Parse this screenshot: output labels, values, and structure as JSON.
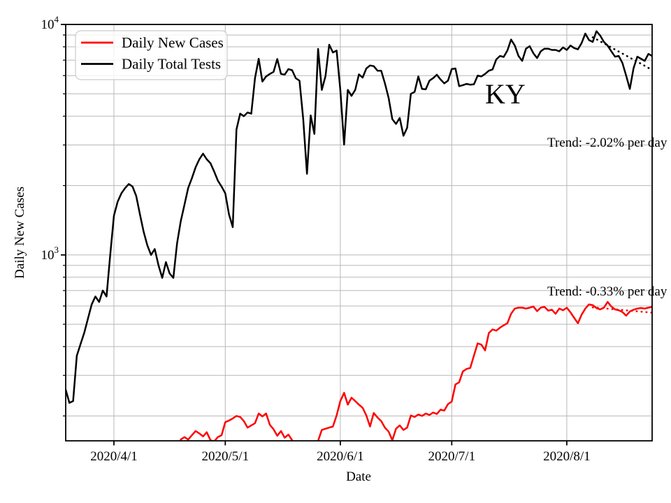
{
  "chart_data": {
    "type": "line",
    "title": "",
    "annotation": "KY",
    "xlabel": "Date",
    "ylabel": "Daily New Cases",
    "x_axis": {
      "start": "2020-03-19",
      "end": "2020-08-24",
      "ticks": [
        {
          "date": "2020-04-01",
          "label": "2020/4/1"
        },
        {
          "date": "2020-05-01",
          "label": "2020/5/1"
        },
        {
          "date": "2020-06-01",
          "label": "2020/6/1"
        },
        {
          "date": "2020-07-01",
          "label": "2020/7/1"
        },
        {
          "date": "2020-08-01",
          "label": "2020/8/1"
        }
      ]
    },
    "y_axis": {
      "scale": "log",
      "min": 156,
      "max": 10000,
      "major_ticks": [
        {
          "value": 10000,
          "base": "10",
          "exp": "4"
        },
        {
          "value": 1000,
          "base": "10",
          "exp": "3"
        }
      ]
    },
    "grid": true,
    "legend_position": "upper-left",
    "colors": {
      "cases": "#ff0000",
      "tests": "#000000",
      "grid": "#b8b8b8",
      "legend_border": "#cccccc"
    },
    "series": [
      {
        "name": "Daily New Cases",
        "color": "#ff0000",
        "start": "2020-04-19",
        "values": [
          158,
          162,
          158,
          165,
          172,
          168,
          163,
          170,
          157,
          155,
          162,
          165,
          188,
          191,
          195,
          200,
          198,
          190,
          178,
          182,
          186,
          205,
          199,
          205,
          183,
          175,
          164,
          172,
          161,
          166,
          157,
          150,
          145,
          148,
          143,
          147,
          150,
          156,
          174,
          176,
          178,
          180,
          201,
          232,
          252,
          224,
          240,
          232,
          224,
          217,
          201,
          180,
          206,
          197,
          190,
          178,
          171,
          157,
          176,
          182,
          174,
          178,
          201,
          198,
          203,
          200,
          205,
          202,
          207,
          204,
          213,
          211,
          225,
          231,
          274,
          280,
          312,
          320,
          323,
          366,
          413,
          408,
          385,
          458,
          475,
          469,
          483,
          495,
          505,
          555,
          585,
          590,
          590,
          585,
          590,
          597,
          570,
          590,
          595,
          573,
          578,
          555,
          585,
          575,
          590,
          563,
          533,
          505,
          550,
          585,
          610,
          605,
          588,
          580,
          590,
          625,
          597,
          580,
          575,
          565,
          545,
          568,
          578,
          585,
          588,
          585,
          590,
          595
        ]
      },
      {
        "name": "Daily Total Tests",
        "color": "#000000",
        "start": "2020-03-19",
        "values": [
          260,
          228,
          232,
          365,
          410,
          460,
          530,
          610,
          660,
          625,
          700,
          660,
          1000,
          1480,
          1700,
          1850,
          1950,
          2030,
          1980,
          1800,
          1500,
          1260,
          1100,
          1000,
          1060,
          900,
          795,
          930,
          830,
          795,
          1120,
          1400,
          1650,
          1950,
          2150,
          2400,
          2600,
          2750,
          2600,
          2500,
          2300,
          2100,
          1980,
          1850,
          1500,
          1320,
          3500,
          4100,
          4000,
          4150,
          4100,
          5840,
          7100,
          5650,
          5950,
          6100,
          6230,
          7080,
          6100,
          6060,
          6400,
          6330,
          5840,
          5700,
          3890,
          2250,
          4030,
          3350,
          7830,
          5200,
          5970,
          8170,
          7560,
          7700,
          5200,
          3010,
          5200,
          4900,
          5200,
          6070,
          5880,
          6440,
          6640,
          6590,
          6300,
          6300,
          5550,
          4800,
          3880,
          3700,
          3930,
          3290,
          3560,
          5000,
          5100,
          5950,
          5250,
          5230,
          5700,
          5850,
          6050,
          5770,
          5550,
          5700,
          6400,
          6440,
          5400,
          5450,
          5520,
          5480,
          5500,
          6000,
          5950,
          6100,
          6300,
          6380,
          7050,
          7300,
          7230,
          7700,
          8600,
          8100,
          7300,
          6950,
          7850,
          8050,
          7500,
          7150,
          7650,
          7850,
          7850,
          7750,
          7750,
          7650,
          7950,
          7750,
          8100,
          7900,
          7800,
          8300,
          9130,
          8550,
          8400,
          9350,
          8950,
          8400,
          8100,
          7650,
          7250,
          7300,
          6800,
          6000,
          5250,
          6450,
          7250,
          7100,
          6950,
          7450,
          7300
        ]
      }
    ],
    "trend_lines": [
      {
        "series": "Daily Total Tests",
        "label": "Trend: -2.02% per day",
        "rate_pct_per_day": -2.02,
        "start": "2020-08-08",
        "end": "2020-08-24",
        "start_value": 8800,
        "style": "dotted",
        "color": "#000000"
      },
      {
        "series": "Daily New Cases",
        "label": "Trend: -0.33% per day",
        "rate_pct_per_day": -0.33,
        "start": "2020-08-08",
        "end": "2020-08-24",
        "start_value": 592,
        "style": "dotted",
        "color": "#ff0000"
      }
    ]
  }
}
